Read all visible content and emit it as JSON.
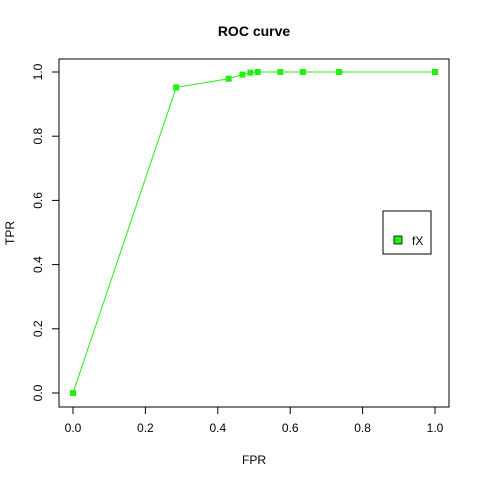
{
  "chart_data": {
    "type": "line",
    "title": "ROC curve",
    "xlabel": "FPR",
    "ylabel": "TPR",
    "xlim": [
      0,
      1
    ],
    "ylim": [
      0,
      1
    ],
    "x_ticks": [
      0.0,
      0.2,
      0.4,
      0.6,
      0.8,
      1.0
    ],
    "y_ticks": [
      0.0,
      0.2,
      0.4,
      0.6,
      0.8,
      1.0
    ],
    "x_tick_labels": [
      "0.0",
      "0.2",
      "0.4",
      "0.6",
      "0.8",
      "1.0"
    ],
    "y_tick_labels": [
      "0.0",
      "0.2",
      "0.4",
      "0.6",
      "0.8",
      "1.0"
    ],
    "grid": false,
    "legend_position": "right",
    "series": [
      {
        "name": "fX",
        "color": "#22ee11",
        "x": [
          0.0,
          0.285,
          0.43,
          0.468,
          0.49,
          0.51,
          0.573,
          0.635,
          0.735,
          1.0
        ],
        "y": [
          0.0,
          0.952,
          0.979,
          0.992,
          0.998,
          1.0,
          1.0,
          1.0,
          1.0,
          1.0
        ]
      }
    ]
  }
}
